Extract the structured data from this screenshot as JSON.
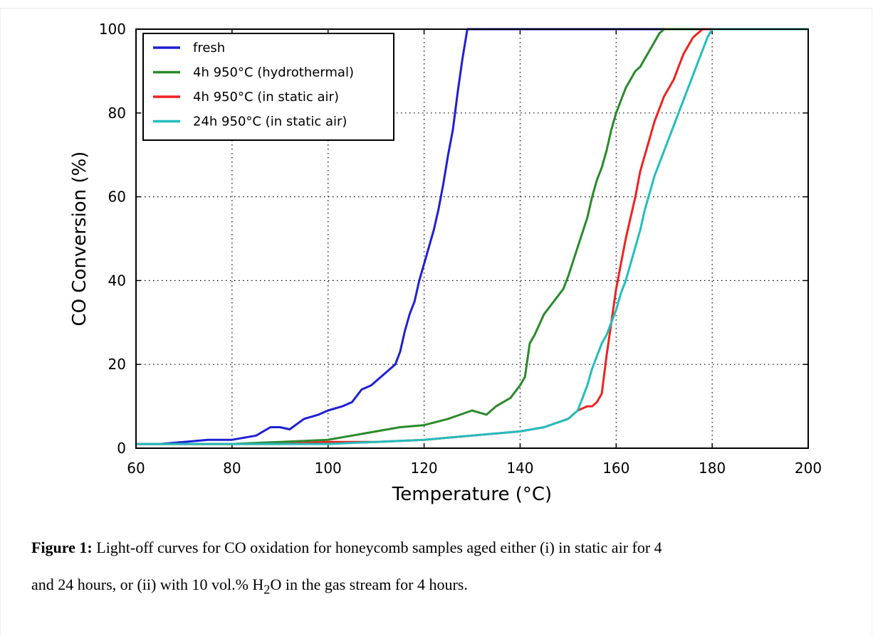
{
  "chart_data": {
    "type": "line",
    "xlabel": "Temperature (°C)",
    "ylabel": "CO Conversion (%)",
    "xlim": [
      60,
      200
    ],
    "ylim": [
      0,
      100
    ],
    "xticks": [
      60,
      80,
      100,
      120,
      140,
      160,
      180,
      200
    ],
    "yticks": [
      0,
      20,
      40,
      60,
      80,
      100
    ],
    "grid": true,
    "legend_position": "top-left",
    "series": [
      {
        "name": "fresh",
        "color": "#1f1fd6",
        "x": [
          60,
          65,
          70,
          75,
          80,
          85,
          88,
          90,
          92,
          95,
          98,
          100,
          103,
          105,
          107,
          109,
          110,
          112,
          114,
          115,
          116,
          117,
          118,
          119,
          120,
          121,
          122,
          123,
          124,
          125,
          126,
          127,
          128,
          129,
          130,
          140,
          160,
          180,
          200
        ],
        "y": [
          1,
          1,
          1.5,
          2,
          2,
          3,
          5,
          5,
          4.5,
          7,
          8,
          9,
          10,
          11,
          14,
          15,
          16,
          18,
          20,
          23,
          28,
          32,
          35,
          40,
          44,
          48,
          52,
          57,
          63,
          70,
          76,
          85,
          93,
          100,
          100,
          100,
          100,
          100,
          100
        ]
      },
      {
        "name": "4h 950°C (hydrothermal)",
        "color": "#2a8a2a",
        "x": [
          60,
          70,
          80,
          90,
          100,
          105,
          110,
          115,
          120,
          125,
          130,
          133,
          135,
          138,
          140,
          141,
          142,
          143,
          145,
          147,
          149,
          150,
          152,
          154,
          155,
          156,
          157,
          158,
          159,
          160,
          161,
          162,
          163,
          164,
          165,
          166,
          167,
          168,
          169,
          170,
          180,
          200
        ],
        "y": [
          1,
          1,
          1,
          1.5,
          2,
          3,
          4,
          5,
          5.5,
          7,
          9,
          8,
          10,
          12,
          15,
          17,
          25,
          27,
          32,
          35,
          38,
          41,
          48,
          55,
          60,
          64,
          67,
          71,
          76,
          80,
          83,
          86,
          88,
          90,
          91,
          93,
          95,
          97,
          99,
          100,
          100,
          100
        ]
      },
      {
        "name": "4h 950°C (in static air)",
        "color": "#ee2222",
        "x": [
          60,
          70,
          80,
          90,
          100,
          110,
          120,
          130,
          140,
          145,
          150,
          152,
          154,
          155,
          156,
          157,
          158,
          159,
          160,
          161,
          162,
          163,
          164,
          165,
          166,
          167,
          168,
          169,
          170,
          171,
          172,
          173,
          174,
          175,
          176,
          177,
          178,
          179,
          180,
          200
        ],
        "y": [
          1,
          1,
          1,
          1,
          1.5,
          1.5,
          2,
          3,
          4,
          5,
          7,
          9,
          10,
          10,
          11,
          13,
          22,
          30,
          38,
          44,
          50,
          55,
          60,
          66,
          70,
          74,
          78,
          81,
          84,
          86,
          88,
          91,
          94,
          96,
          98,
          99,
          100,
          100,
          100,
          100
        ]
      },
      {
        "name": "24h 950°C (in static air)",
        "color": "#22bdbd",
        "x": [
          60,
          70,
          80,
          90,
          100,
          110,
          120,
          130,
          140,
          145,
          150,
          152,
          153,
          154,
          155,
          156,
          157,
          158,
          159,
          160,
          161,
          162,
          163,
          164,
          165,
          166,
          167,
          168,
          169,
          170,
          171,
          172,
          173,
          174,
          175,
          176,
          177,
          178,
          179,
          180,
          181,
          200
        ],
        "y": [
          1,
          1,
          1,
          1,
          1,
          1.5,
          2,
          3,
          4,
          5,
          7,
          9,
          12,
          15,
          19,
          22,
          25,
          27,
          30,
          33,
          37,
          40,
          44,
          48,
          52,
          57,
          61,
          65,
          68,
          71,
          74,
          77,
          80,
          83,
          86,
          89,
          92,
          95,
          98,
          100,
          100,
          100
        ]
      }
    ]
  },
  "caption": {
    "label": "Figure 1:",
    "line1_text": " Light-off curves for CO oxidation for honeycomb samples aged either (i) in static air for 4",
    "line2_before": "and 24 hours, or (ii) with 10 vol.% H",
    "line2_sub": "2",
    "line2_after": "O in the gas stream for 4 hours."
  }
}
